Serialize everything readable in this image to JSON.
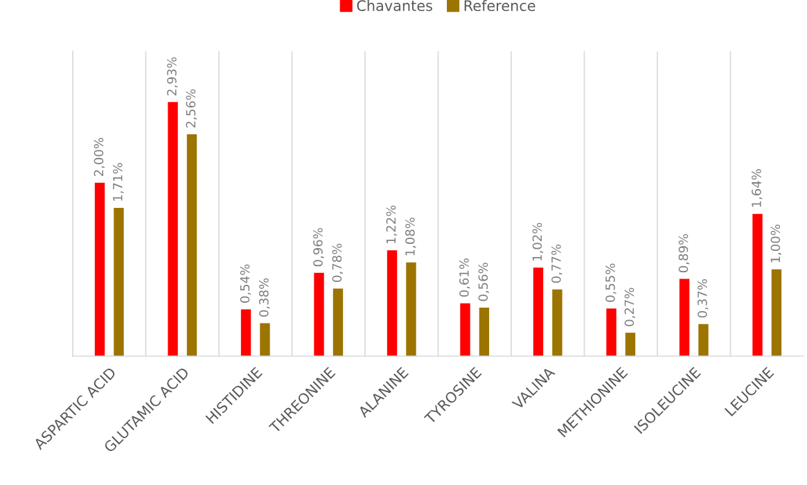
{
  "chart_data": {
    "type": "bar",
    "categories": [
      "ASPARTIC ACID",
      "GLUTAMIC ACID",
      "HISTIDINE",
      "THREONINE",
      "ALANINE",
      "TYROSINE",
      "VALINA",
      "METHIONINE",
      "ISOLEUCINE",
      "LEUCINE"
    ],
    "series": [
      {
        "name": "Chavantes",
        "color": "#ff0000",
        "values": [
          2.0,
          2.93,
          0.54,
          0.96,
          1.22,
          0.61,
          1.02,
          0.55,
          0.89,
          1.64
        ],
        "value_labels": [
          "2,00%",
          "2,93%",
          "0,54%",
          "0,96%",
          "1,22%",
          "0,61%",
          "1,02%",
          "0,55%",
          "0,89%",
          "1,64%"
        ]
      },
      {
        "name": "Reference",
        "color": "#9c7400",
        "values": [
          1.71,
          2.56,
          0.38,
          0.78,
          1.08,
          0.56,
          0.77,
          0.27,
          0.37,
          1.0
        ],
        "value_labels": [
          "1,71%",
          "2,56%",
          "0,38%",
          "0,78%",
          "1,08%",
          "0,56%",
          "0,77%",
          "0,27%",
          "0,37%",
          "1,00%"
        ]
      }
    ],
    "grid": "x",
    "legend": "top",
    "tick_labels": "x"
  }
}
